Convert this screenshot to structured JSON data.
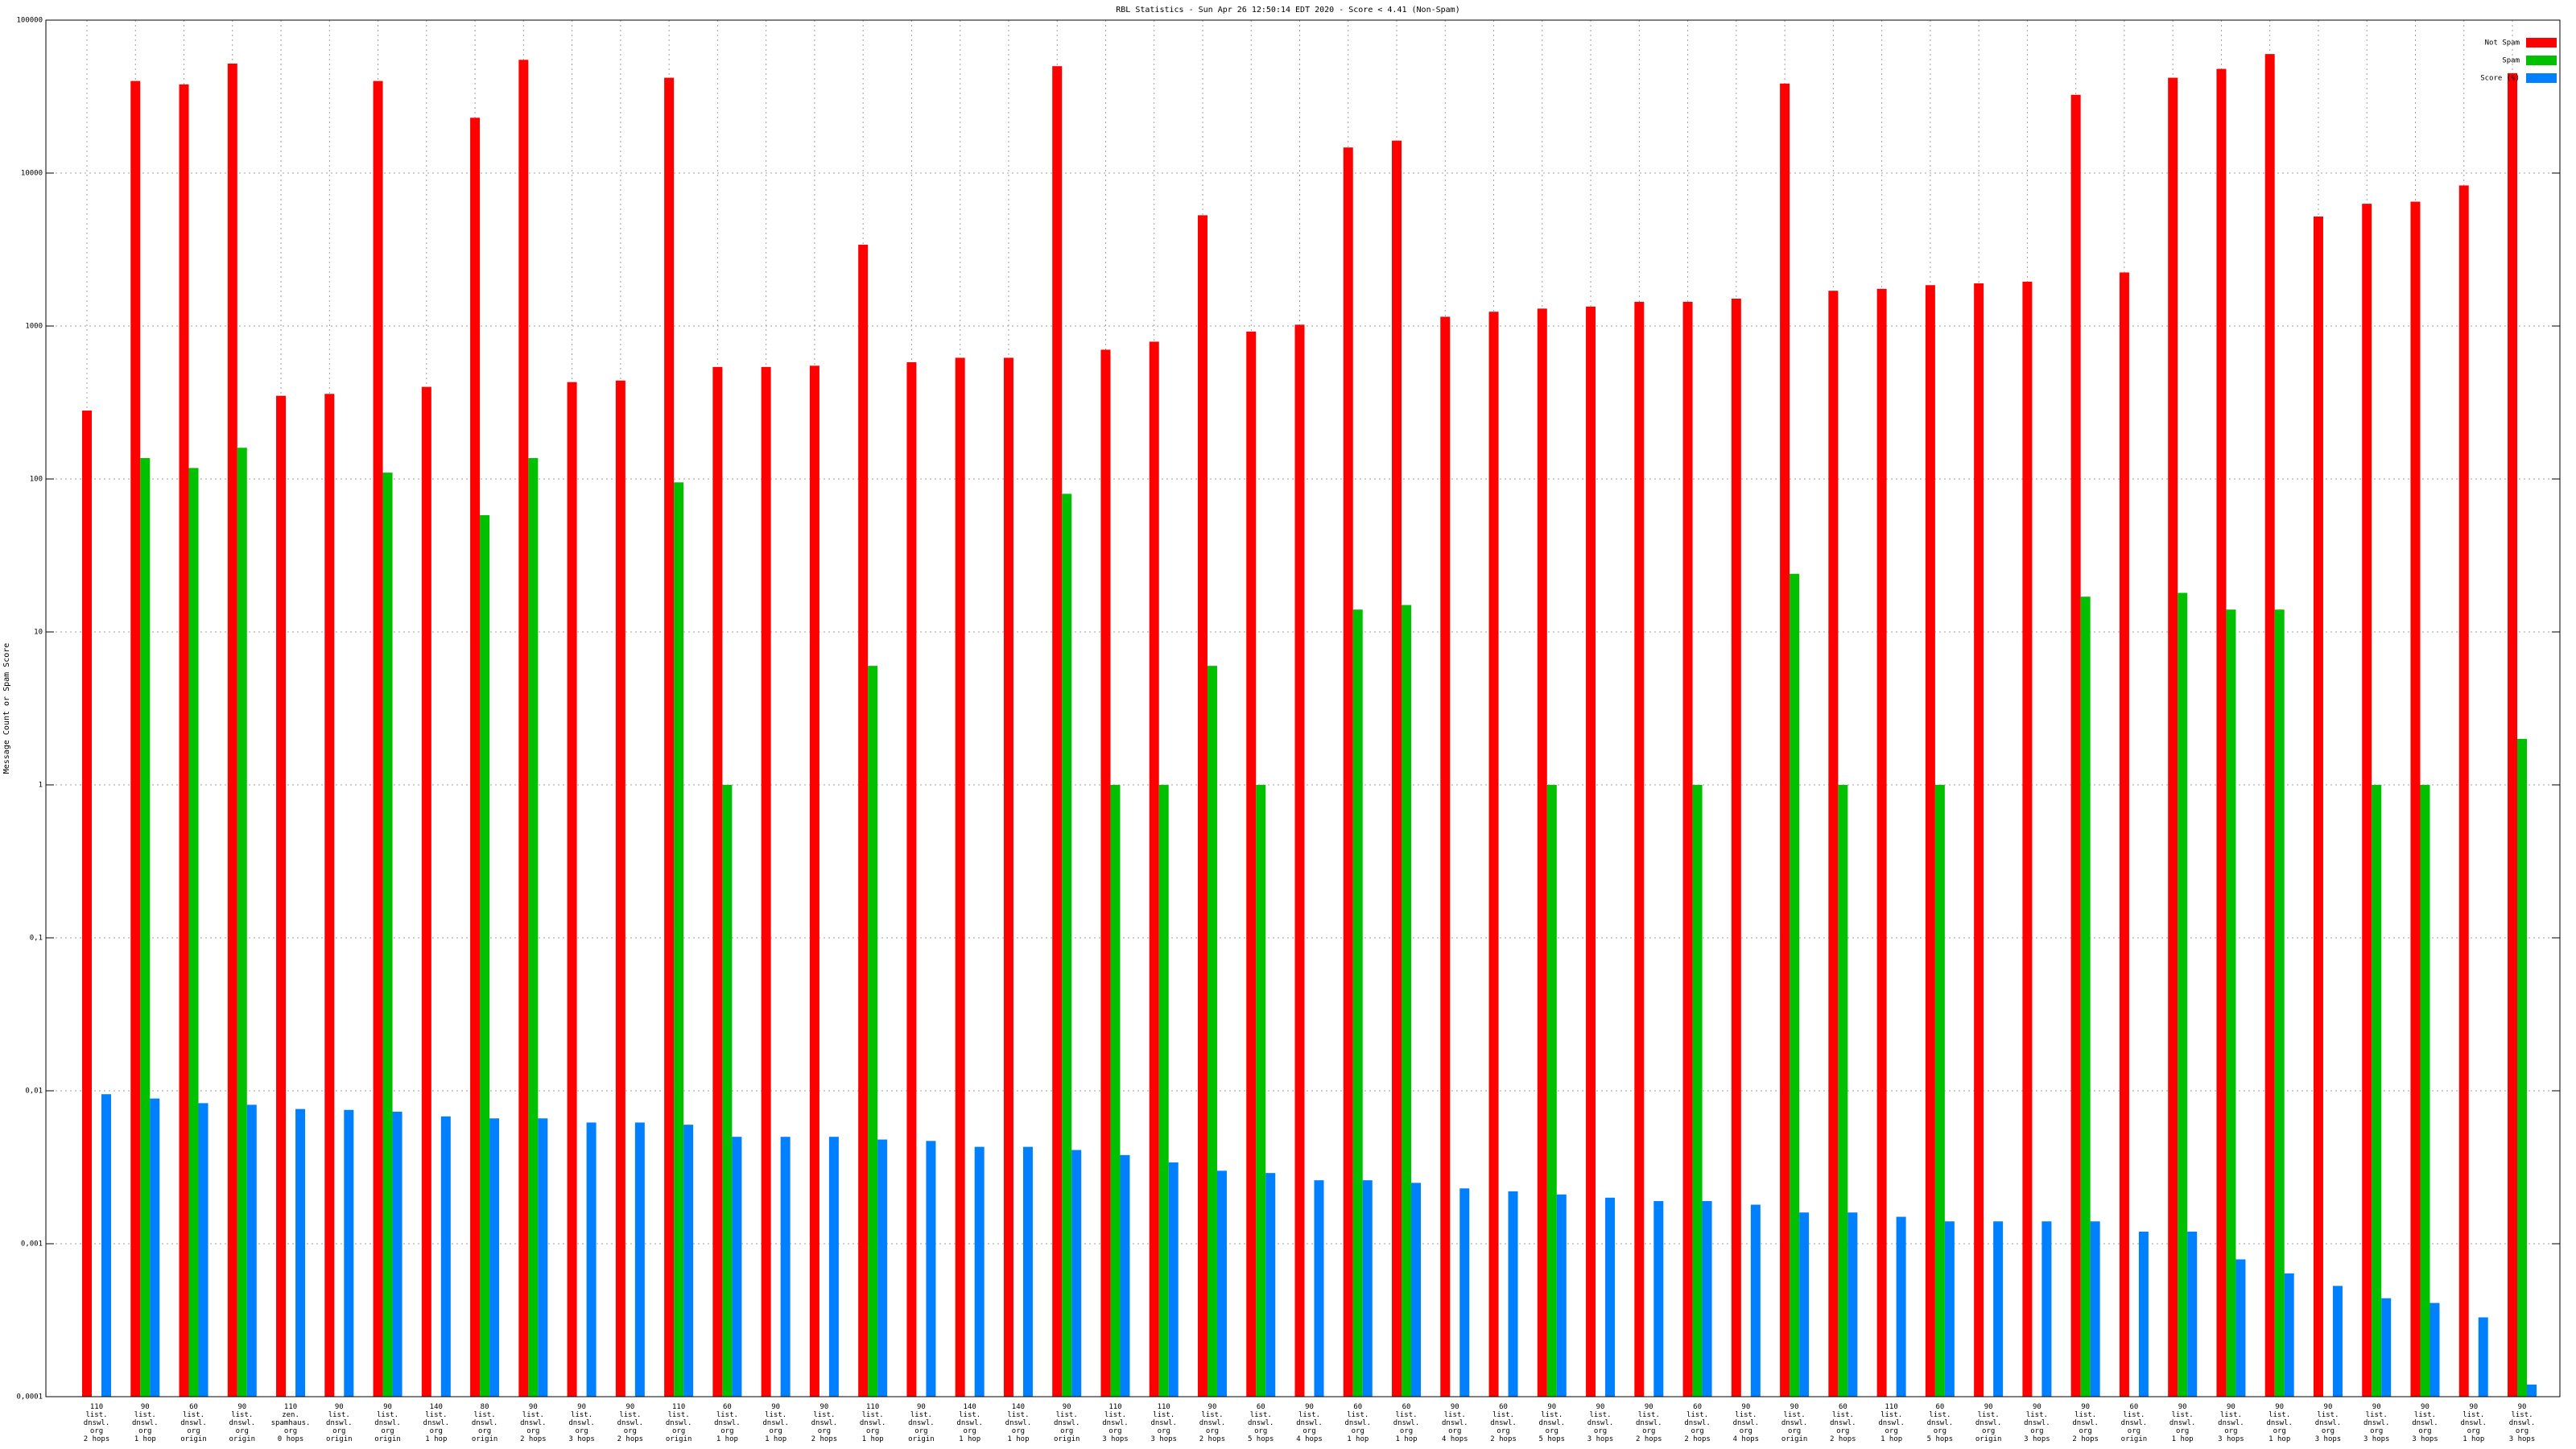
{
  "chart_data": {
    "type": "bar",
    "title": "RBL Statistics - Sun Apr 26 12:50:14 EDT 2020 - Score < 4.41 (Non-Spam)",
    "y_label": "Message Count or Spam Score",
    "y_scale": "log",
    "grid": true,
    "legend_position": "upper right",
    "ylim": [
      0.0001,
      100000
    ],
    "yticks": [
      {
        "value": 0.0001,
        "label": "0,0001"
      },
      {
        "value": 0.001,
        "label": "0,001"
      },
      {
        "value": 0.01,
        "label": "0,01"
      },
      {
        "value": 0.1,
        "label": "0,1"
      },
      1,
      10,
      100,
      1000,
      10000,
      100000
    ],
    "categories": [
      [
        "110",
        "list.",
        "dnswl.",
        "org",
        "2 hops"
      ],
      [
        "90",
        "list.",
        "dnswl.",
        "org",
        "1 hop"
      ],
      [
        "60",
        "list.",
        "dnswl.",
        "org",
        "origin"
      ],
      [
        "90",
        "list.",
        "dnswl.",
        "org",
        "origin"
      ],
      [
        "110",
        "zen.",
        "spamhaus.",
        "org",
        "0 hops"
      ],
      [
        "90",
        "list.",
        "dnswl.",
        "org",
        "origin"
      ],
      [
        "90",
        "list.",
        "dnswl.",
        "org",
        "origin"
      ],
      [
        "140",
        "list.",
        "dnswl.",
        "org",
        "1 hop"
      ],
      [
        "80",
        "list.",
        "dnswl.",
        "org",
        "origin"
      ],
      [
        "90",
        "list.",
        "dnswl.",
        "org",
        "2 hops"
      ],
      [
        "90",
        "list.",
        "dnswl.",
        "org",
        "3 hops"
      ],
      [
        "90",
        "list.",
        "dnswl.",
        "org",
        "2 hops"
      ],
      [
        "110",
        "list.",
        "dnswl.",
        "org",
        "origin"
      ],
      [
        "60",
        "list.",
        "dnswl.",
        "org",
        "1 hop"
      ],
      [
        "90",
        "list.",
        "dnswl.",
        "org",
        "1 hop"
      ],
      [
        "90",
        "list.",
        "dnswl.",
        "org",
        "2 hops"
      ],
      [
        "110",
        "list.",
        "dnswl.",
        "org",
        "1 hop"
      ],
      [
        "90",
        "list.",
        "dnswl.",
        "org",
        "origin"
      ],
      [
        "140",
        "list.",
        "dnswl.",
        "org",
        "1 hop"
      ],
      [
        "140",
        "list.",
        "dnswl.",
        "org",
        "1 hop"
      ],
      [
        "90",
        "list.",
        "dnswl.",
        "org",
        "origin"
      ],
      [
        "110",
        "list.",
        "dnswl.",
        "org",
        "3 hops"
      ],
      [
        "110",
        "list.",
        "dnswl.",
        "org",
        "3 hops"
      ],
      [
        "90",
        "list.",
        "dnswl.",
        "org",
        "2 hops"
      ],
      [
        "60",
        "list.",
        "dnswl.",
        "org",
        "5 hops"
      ],
      [
        "90",
        "list.",
        "dnswl.",
        "org",
        "4 hops"
      ],
      [
        "60",
        "list.",
        "dnswl.",
        "org",
        "1 hop"
      ],
      [
        "60",
        "list.",
        "dnswl.",
        "org",
        "1 hop"
      ],
      [
        "90",
        "list.",
        "dnswl.",
        "org",
        "4 hops"
      ],
      [
        "60",
        "list.",
        "dnswl.",
        "org",
        "2 hops"
      ],
      [
        "90",
        "list.",
        "dnswl.",
        "org",
        "5 hops"
      ],
      [
        "90",
        "list.",
        "dnswl.",
        "org",
        "3 hops"
      ],
      [
        "90",
        "list.",
        "dnswl.",
        "org",
        "2 hops"
      ],
      [
        "60",
        "list.",
        "dnswl.",
        "org",
        "2 hops"
      ],
      [
        "90",
        "list.",
        "dnswl.",
        "org",
        "4 hops"
      ],
      [
        "90",
        "list.",
        "dnswl.",
        "org",
        "origin"
      ],
      [
        "60",
        "list.",
        "dnswl.",
        "org",
        "2 hops"
      ],
      [
        "110",
        "list.",
        "dnswl.",
        "org",
        "1 hop"
      ],
      [
        "60",
        "list.",
        "dnswl.",
        "org",
        "5 hops"
      ],
      [
        "90",
        "list.",
        "dnswl.",
        "org",
        "origin"
      ],
      [
        "90",
        "list.",
        "dnswl.",
        "org",
        "3 hops"
      ],
      [
        "90",
        "list.",
        "dnswl.",
        "org",
        "2 hops"
      ],
      [
        "60",
        "list.",
        "dnswl.",
        "org",
        "origin"
      ],
      [
        "90",
        "list.",
        "dnswl.",
        "org",
        "1 hop"
      ],
      [
        "90",
        "list.",
        "dnswl.",
        "org",
        "3 hops"
      ],
      [
        "90",
        "list.",
        "dnswl.",
        "org",
        "1 hop"
      ],
      [
        "90",
        "list.",
        "dnswl.",
        "org",
        "3 hops"
      ],
      [
        "90",
        "list.",
        "dnswl.",
        "org",
        "3 hops"
      ],
      [
        "90",
        "list.",
        "dnswl.",
        "org",
        "3 hops"
      ],
      [
        "90",
        "list.",
        "dnswl.",
        "org",
        "1 hop"
      ],
      [
        "90",
        "list.",
        "dnswl.",
        "org",
        "3 hops"
      ]
    ],
    "series": [
      {
        "name": "Not Spam",
        "color": "#ff0000",
        "values": [
          280,
          40000,
          38000,
          52000,
          350,
          360,
          40000,
          400,
          23000,
          55000,
          430,
          440,
          42000,
          540,
          540,
          550,
          3400,
          580,
          620,
          620,
          50000,
          700,
          790,
          5300,
          920,
          1020,
          14700,
          16300,
          1150,
          1240,
          1300,
          1340,
          1440,
          1440,
          1510,
          38500,
          1700,
          1750,
          1850,
          1900,
          1950,
          32500,
          2240,
          42000,
          48000,
          60000,
          5200,
          6300,
          6500,
          8300,
          45000
        ]
      },
      {
        "name": "Spam",
        "color": "#00c000",
        "values": [
          null,
          137,
          118,
          160,
          null,
          null,
          110,
          null,
          58,
          137,
          null,
          null,
          95,
          1,
          null,
          null,
          6,
          null,
          null,
          null,
          80,
          1,
          1,
          6,
          1,
          null,
          14,
          15,
          null,
          null,
          1,
          null,
          null,
          1,
          null,
          24,
          1,
          null,
          1,
          null,
          null,
          17,
          null,
          18,
          14,
          14,
          null,
          1,
          1,
          null,
          2
        ]
      },
      {
        "name": "Score (%)",
        "color": "#0080ff",
        "values": [
          0.0095,
          0.0089,
          0.0083,
          0.0081,
          0.0076,
          0.0075,
          0.0073,
          0.0068,
          0.0066,
          0.0066,
          0.0062,
          0.0062,
          0.006,
          0.005,
          0.005,
          0.005,
          0.0048,
          0.0047,
          0.0043,
          0.0043,
          0.0041,
          0.0038,
          0.0034,
          0.003,
          0.0029,
          0.0026,
          0.0026,
          0.0025,
          0.0023,
          0.0022,
          0.0021,
          0.002,
          0.0019,
          0.0019,
          0.0018,
          0.0016,
          0.0016,
          0.0015,
          0.0014,
          0.0014,
          0.0014,
          0.0014,
          0.0012,
          0.0012,
          0.00079,
          0.00064,
          0.00053,
          0.00044,
          0.00041,
          0.00033,
          0.00012
        ]
      }
    ]
  }
}
